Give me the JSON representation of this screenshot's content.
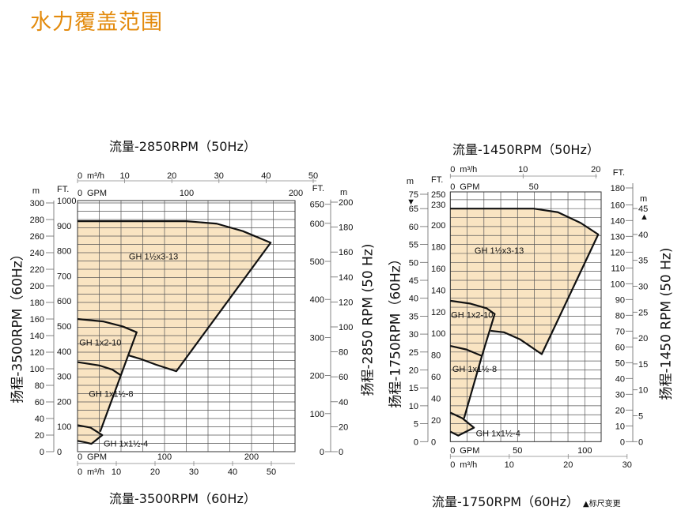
{
  "page": {
    "title": "水力覆盖范围"
  },
  "colors": {
    "title": "#e38b0e",
    "region_fill": "#f9e4c2",
    "outline": "#111111",
    "grid": "#555555"
  },
  "chart_data": [
    {
      "type": "area",
      "title_top": "流量-2850RPM（50Hz）",
      "title_bottom": "流量-3500RPM（60Hz）",
      "ylabel_left": "扬程-3500RPM（60Hz）",
      "ylabel_right": "扬程-2850 RPM (50 Hz)",
      "grid": true,
      "region_units": {
        "x": "GPM (3500RPM)",
        "y": "m (3500RPM)"
      },
      "xlim": [
        0,
        250
      ],
      "ylim": [
        0,
        300
      ],
      "axes": {
        "left_m": {
          "unit": "m",
          "ticks": [
            0,
            20,
            40,
            60,
            80,
            100,
            120,
            140,
            160,
            180,
            200,
            220,
            240,
            260,
            280,
            300
          ]
        },
        "left_ft": {
          "unit": "FT.",
          "ticks": [
            0,
            100,
            200,
            300,
            400,
            500,
            600,
            700,
            800,
            900,
            1000
          ]
        },
        "right_ft": {
          "unit": "FT.",
          "ticks": [
            0,
            100,
            200,
            300,
            400,
            500,
            600,
            650
          ]
        },
        "right_m": {
          "unit": "m",
          "ticks": [
            0,
            20,
            40,
            60,
            80,
            100,
            120,
            140,
            160,
            180,
            200
          ]
        },
        "top_m3h": {
          "unit": "m³/h",
          "ticks": [
            0,
            10,
            20,
            30,
            40,
            50
          ]
        },
        "top_gpm": {
          "unit": "GPM",
          "ticks": [
            0,
            100,
            200
          ]
        },
        "bottom_gpm": {
          "unit": "GPM",
          "ticks": [
            0,
            100,
            200
          ]
        },
        "bottom_m3h": {
          "unit": "m³/h",
          "ticks": [
            0,
            10,
            20,
            30,
            40,
            50
          ]
        }
      },
      "fill_outline": [
        [
          0,
          278
        ],
        [
          125,
          278
        ],
        [
          160,
          275
        ],
        [
          190,
          266
        ],
        [
          222,
          252
        ],
        [
          113.6,
          97
        ],
        [
          90,
          105
        ],
        [
          72,
          112
        ],
        [
          59,
          116
        ],
        [
          50,
          92
        ],
        [
          26,
          24
        ],
        [
          28.5,
          20
        ],
        [
          16,
          9.5
        ],
        [
          8,
          11.5
        ],
        [
          0,
          13
        ]
      ],
      "boundaries": [
        [
          [
            0,
            278
          ],
          [
            125,
            278
          ],
          [
            160,
            275
          ],
          [
            190,
            266
          ],
          [
            222,
            252
          ],
          [
            113.6,
            97
          ],
          [
            90,
            105
          ],
          [
            72,
            112
          ],
          [
            59,
            116
          ]
        ],
        [
          [
            0,
            160
          ],
          [
            30,
            157
          ],
          [
            52,
            151
          ],
          [
            68,
            144
          ],
          [
            26,
            24
          ]
        ],
        [
          [
            0,
            108
          ],
          [
            25,
            104
          ],
          [
            40,
            99
          ],
          [
            50,
            92
          ]
        ],
        [
          [
            0,
            32
          ],
          [
            15,
            29
          ],
          [
            28.5,
            20
          ],
          [
            16,
            9.5
          ],
          [
            8,
            11.5
          ],
          [
            0,
            13
          ]
        ]
      ],
      "regions": [
        {
          "label": "GH 1½x3-13",
          "at": [
            59,
            232
          ]
        },
        {
          "label": "GH 1x2-10",
          "at": [
            2,
            128
          ]
        },
        {
          "label": "GH 1x1½-8",
          "at": [
            13,
            66
          ]
        },
        {
          "label": "GH 1x1½-4",
          "at": [
            30,
            6
          ]
        }
      ]
    },
    {
      "type": "area",
      "title_top": "流量-1450RPM（50Hz）",
      "title_bottom": "流量-1750RPM（60Hz）",
      "note": "▲标尺变更",
      "ylabel_left": "扬程-1750RPM（60Hz）",
      "ylabel_right": "扬程-1450 RPM (50 Hz)",
      "grid": true,
      "region_units": {
        "x": "GPM (1750RPM)",
        "y": "m (1750RPM)"
      },
      "xlim": [
        0,
        112.5
      ],
      "ylim": [
        0,
        75
      ],
      "axes": {
        "left_m": {
          "unit": "m",
          "ticks": [
            0,
            5,
            10,
            15,
            20,
            25,
            30,
            35,
            40,
            45,
            50,
            55,
            60,
            65,
            75
          ],
          "marker": "▼"
        },
        "left_ft": {
          "unit": "FT.",
          "ticks": [
            0,
            20,
            40,
            60,
            80,
            100,
            120,
            140,
            160,
            180,
            200,
            230,
            250
          ]
        },
        "right_ft": {
          "unit": "FT.",
          "ticks": [
            0,
            10,
            20,
            30,
            40,
            50,
            60,
            70,
            80,
            90,
            100,
            110,
            120,
            130,
            140,
            160,
            180
          ]
        },
        "right_m": {
          "unit": "m",
          "ticks": [
            0,
            5,
            10,
            15,
            20,
            25,
            30,
            35,
            40,
            45
          ],
          "marker": "▲"
        },
        "top_m3h": {
          "unit": "m³/h",
          "ticks": [
            0,
            10,
            20
          ]
        },
        "top_gpm": {
          "unit": "GPM",
          "ticks": [
            0,
            50
          ]
        },
        "bottom_gpm": {
          "unit": "GPM",
          "ticks": [
            0,
            50,
            100
          ]
        },
        "bottom_m3h": {
          "unit": "m³/h",
          "ticks": [
            0,
            10,
            20,
            30
          ]
        }
      },
      "fill_outline": [
        [
          0,
          65
        ],
        [
          62,
          65
        ],
        [
          80,
          64
        ],
        [
          97,
          61
        ],
        [
          110,
          57.8
        ],
        [
          68,
          24.4
        ],
        [
          52,
          28.5
        ],
        [
          40,
          30.5
        ],
        [
          30,
          30.9
        ],
        [
          23.5,
          23.9
        ],
        [
          10.2,
          6.5
        ],
        [
          17.6,
          3.9
        ],
        [
          5.9,
          1.7
        ],
        [
          0,
          2.8
        ]
      ],
      "boundaries": [
        [
          [
            0,
            65
          ],
          [
            62,
            65
          ],
          [
            80,
            64
          ],
          [
            97,
            61
          ],
          [
            110,
            57.8
          ],
          [
            68,
            24.4
          ],
          [
            52,
            28.5
          ],
          [
            40,
            30.5
          ],
          [
            30,
            30.9
          ]
        ],
        [
          [
            0,
            39.3
          ],
          [
            15,
            38.5
          ],
          [
            27,
            37.2
          ],
          [
            33,
            35.6
          ],
          [
            23.5,
            23.9
          ],
          [
            10.2,
            6.5
          ]
        ],
        [
          [
            0,
            26.7
          ],
          [
            12,
            25.7
          ],
          [
            23.5,
            23.9
          ]
        ],
        [
          [
            0,
            8.1
          ],
          [
            9,
            6.5
          ],
          [
            17.6,
            3.9
          ],
          [
            5.9,
            1.7
          ],
          [
            0,
            2.8
          ]
        ]
      ],
      "regions": [
        {
          "label": "GH 1½x3-13",
          "at": [
            18,
            52.5
          ]
        },
        {
          "label": "GH 1x2-10",
          "at": [
            0.5,
            34.5
          ]
        },
        {
          "label": "GH 1x1½-8",
          "at": [
            1.5,
            19.5
          ]
        },
        {
          "label": "GH 1x1½-4",
          "at": [
            19,
            1.5
          ]
        }
      ]
    }
  ]
}
